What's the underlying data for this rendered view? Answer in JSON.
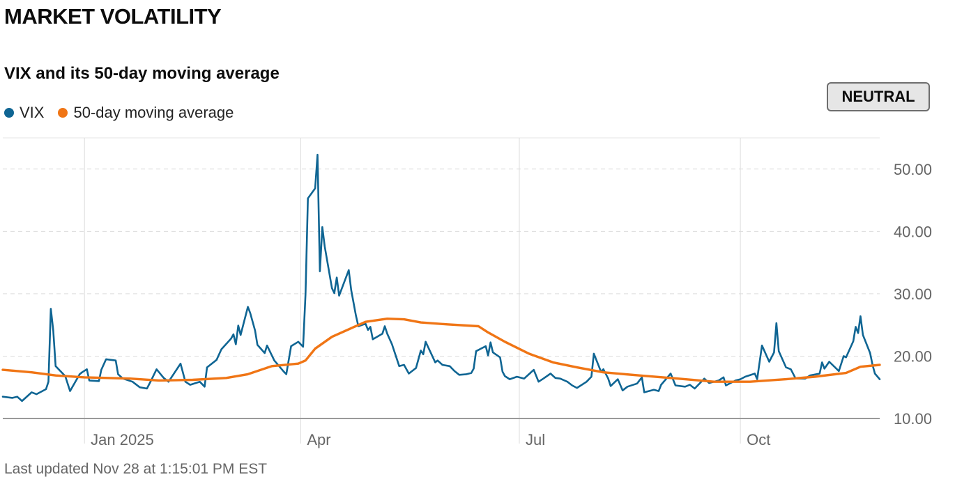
{
  "header": {
    "title": "MARKET VOLATILITY",
    "subtitle": "VIX and its 50-day moving average",
    "status_badge": "NEUTRAL"
  },
  "legend": [
    {
      "label": "VIX",
      "color": "#0f6593"
    },
    {
      "label": "50-day moving average",
      "color": "#f07515"
    }
  ],
  "footer": {
    "last_updated": "Last updated Nov 28 at 1:15:01 PM EST"
  },
  "colors": {
    "vix": "#0f6593",
    "ma": "#f07515",
    "grid": "#dcdcdc",
    "axis": "#9a9a9a",
    "tick": "#666666"
  },
  "chart_data": {
    "type": "line",
    "title": "VIX and its 50-day moving average",
    "xlabel": "",
    "ylabel": "",
    "x_domain": [
      "2024-11-28",
      "2025-11-28"
    ],
    "ylim": [
      10,
      55
    ],
    "y_ticks": [
      {
        "value": 10,
        "label": "10.00"
      },
      {
        "value": 20,
        "label": "20.00"
      },
      {
        "value": 30,
        "label": "30.00"
      },
      {
        "value": 40,
        "label": "40.00"
      },
      {
        "value": 50,
        "label": "50.00"
      }
    ],
    "x_ticks": [
      {
        "date": "2025-01-01",
        "label": "Jan 2025"
      },
      {
        "date": "2025-04-01",
        "label": "Apr"
      },
      {
        "date": "2025-07-01",
        "label": "Jul"
      },
      {
        "date": "2025-10-01",
        "label": "Oct"
      }
    ],
    "series": [
      {
        "name": "VIX",
        "color": "#0f6593",
        "points": [
          [
            "2024-11-28",
            13.5
          ],
          [
            "2024-12-02",
            13.3
          ],
          [
            "2024-12-04",
            13.5
          ],
          [
            "2024-12-06",
            12.8
          ],
          [
            "2024-12-10",
            14.2
          ],
          [
            "2024-12-12",
            13.9
          ],
          [
            "2024-12-16",
            14.7
          ],
          [
            "2024-12-17",
            15.9
          ],
          [
            "2024-12-18",
            27.6
          ],
          [
            "2024-12-19",
            24.1
          ],
          [
            "2024-12-20",
            18.4
          ],
          [
            "2024-12-24",
            16.8
          ],
          [
            "2024-12-26",
            14.4
          ],
          [
            "2024-12-30",
            17.1
          ],
          [
            "2024-12-31",
            17.4
          ],
          [
            "2025-01-02",
            17.9
          ],
          [
            "2025-01-03",
            16.1
          ],
          [
            "2025-01-07",
            16.0
          ],
          [
            "2025-01-08",
            17.8
          ],
          [
            "2025-01-10",
            19.5
          ],
          [
            "2025-01-14",
            19.3
          ],
          [
            "2025-01-15",
            17.1
          ],
          [
            "2025-01-17",
            16.4
          ],
          [
            "2025-01-21",
            15.9
          ],
          [
            "2025-01-24",
            15.0
          ],
          [
            "2025-01-27",
            14.8
          ],
          [
            "2025-01-29",
            16.3
          ],
          [
            "2025-01-31",
            17.9
          ],
          [
            "2025-02-03",
            16.5
          ],
          [
            "2025-02-05",
            15.9
          ],
          [
            "2025-02-10",
            18.8
          ],
          [
            "2025-02-12",
            15.9
          ],
          [
            "2025-02-14",
            15.4
          ],
          [
            "2025-02-18",
            15.9
          ],
          [
            "2025-02-20",
            15.1
          ],
          [
            "2025-02-21",
            18.2
          ],
          [
            "2025-02-25",
            19.4
          ],
          [
            "2025-02-27",
            21.1
          ],
          [
            "2025-03-03",
            22.8
          ],
          [
            "2025-03-04",
            23.5
          ],
          [
            "2025-03-05",
            21.9
          ],
          [
            "2025-03-06",
            24.9
          ],
          [
            "2025-03-07",
            23.4
          ],
          [
            "2025-03-10",
            27.9
          ],
          [
            "2025-03-11",
            26.9
          ],
          [
            "2025-03-13",
            24.1
          ],
          [
            "2025-03-14",
            21.8
          ],
          [
            "2025-03-17",
            20.5
          ],
          [
            "2025-03-18",
            21.7
          ],
          [
            "2025-03-21",
            19.3
          ],
          [
            "2025-03-25",
            17.5
          ],
          [
            "2025-03-26",
            17.1
          ],
          [
            "2025-03-28",
            21.6
          ],
          [
            "2025-03-31",
            22.3
          ],
          [
            "2025-04-02",
            21.5
          ],
          [
            "2025-04-03",
            30.0
          ],
          [
            "2025-04-04",
            45.3
          ],
          [
            "2025-04-07",
            46.9
          ],
          [
            "2025-04-08",
            52.3
          ],
          [
            "2025-04-09",
            33.6
          ],
          [
            "2025-04-10",
            40.7
          ],
          [
            "2025-04-11",
            37.6
          ],
          [
            "2025-04-14",
            30.9
          ],
          [
            "2025-04-15",
            30.1
          ],
          [
            "2025-04-16",
            32.6
          ],
          [
            "2025-04-17",
            29.7
          ],
          [
            "2025-04-21",
            33.8
          ],
          [
            "2025-04-22",
            30.6
          ],
          [
            "2025-04-24",
            26.5
          ],
          [
            "2025-04-25",
            24.8
          ],
          [
            "2025-04-28",
            25.2
          ],
          [
            "2025-04-29",
            24.2
          ],
          [
            "2025-04-30",
            24.7
          ],
          [
            "2025-05-01",
            22.7
          ],
          [
            "2025-05-05",
            23.6
          ],
          [
            "2025-05-06",
            24.8
          ],
          [
            "2025-05-07",
            23.6
          ],
          [
            "2025-05-09",
            21.9
          ],
          [
            "2025-05-12",
            18.4
          ],
          [
            "2025-05-14",
            18.6
          ],
          [
            "2025-05-16",
            17.2
          ],
          [
            "2025-05-19",
            18.1
          ],
          [
            "2025-05-21",
            20.9
          ],
          [
            "2025-05-22",
            20.3
          ],
          [
            "2025-05-23",
            22.3
          ],
          [
            "2025-05-27",
            19.0
          ],
          [
            "2025-05-28",
            19.3
          ],
          [
            "2025-05-30",
            18.6
          ],
          [
            "2025-06-02",
            18.4
          ],
          [
            "2025-06-04",
            17.6
          ],
          [
            "2025-06-06",
            17.0
          ],
          [
            "2025-06-09",
            17.1
          ],
          [
            "2025-06-11",
            17.3
          ],
          [
            "2025-06-12",
            18.0
          ],
          [
            "2025-06-13",
            20.8
          ],
          [
            "2025-06-17",
            21.6
          ],
          [
            "2025-06-18",
            20.1
          ],
          [
            "2025-06-19",
            22.2
          ],
          [
            "2025-06-20",
            20.6
          ],
          [
            "2025-06-23",
            19.8
          ],
          [
            "2025-06-24",
            17.5
          ],
          [
            "2025-06-25",
            16.8
          ],
          [
            "2025-06-27",
            16.3
          ],
          [
            "2025-06-30",
            16.7
          ],
          [
            "2025-07-03",
            16.4
          ],
          [
            "2025-07-07",
            17.8
          ],
          [
            "2025-07-09",
            15.9
          ],
          [
            "2025-07-11",
            16.4
          ],
          [
            "2025-07-14",
            17.2
          ],
          [
            "2025-07-16",
            16.5
          ],
          [
            "2025-07-18",
            16.4
          ],
          [
            "2025-07-21",
            15.9
          ],
          [
            "2025-07-23",
            15.3
          ],
          [
            "2025-07-25",
            14.9
          ],
          [
            "2025-07-29",
            15.9
          ],
          [
            "2025-07-31",
            16.7
          ],
          [
            "2025-08-01",
            20.4
          ],
          [
            "2025-08-04",
            17.5
          ],
          [
            "2025-08-05",
            17.9
          ],
          [
            "2025-08-07",
            16.4
          ],
          [
            "2025-08-08",
            15.2
          ],
          [
            "2025-08-11",
            16.3
          ],
          [
            "2025-08-13",
            14.5
          ],
          [
            "2025-08-15",
            15.1
          ],
          [
            "2025-08-19",
            15.6
          ],
          [
            "2025-08-21",
            16.6
          ],
          [
            "2025-08-22",
            14.2
          ],
          [
            "2025-08-26",
            14.6
          ],
          [
            "2025-08-28",
            14.4
          ],
          [
            "2025-08-29",
            15.4
          ],
          [
            "2025-09-02",
            17.2
          ],
          [
            "2025-09-04",
            15.3
          ],
          [
            "2025-09-08",
            15.1
          ],
          [
            "2025-09-10",
            15.4
          ],
          [
            "2025-09-12",
            14.8
          ],
          [
            "2025-09-16",
            16.4
          ],
          [
            "2025-09-18",
            15.7
          ],
          [
            "2025-09-22",
            16.1
          ],
          [
            "2025-09-24",
            16.6
          ],
          [
            "2025-09-25",
            15.3
          ],
          [
            "2025-09-29",
            16.1
          ],
          [
            "2025-10-01",
            16.3
          ],
          [
            "2025-10-03",
            16.7
          ],
          [
            "2025-10-07",
            17.2
          ],
          [
            "2025-10-08",
            16.3
          ],
          [
            "2025-10-10",
            21.7
          ],
          [
            "2025-10-13",
            19.1
          ],
          [
            "2025-10-15",
            20.6
          ],
          [
            "2025-10-16",
            25.3
          ],
          [
            "2025-10-17",
            20.8
          ],
          [
            "2025-10-20",
            18.2
          ],
          [
            "2025-10-22",
            17.9
          ],
          [
            "2025-10-24",
            16.4
          ],
          [
            "2025-10-28",
            16.4
          ],
          [
            "2025-10-30",
            16.9
          ],
          [
            "2025-11-03",
            17.2
          ],
          [
            "2025-11-04",
            19.0
          ],
          [
            "2025-11-05",
            18.0
          ],
          [
            "2025-11-07",
            19.1
          ],
          [
            "2025-11-11",
            17.6
          ],
          [
            "2025-11-13",
            20.0
          ],
          [
            "2025-11-14",
            19.8
          ],
          [
            "2025-11-17",
            22.4
          ],
          [
            "2025-11-18",
            24.7
          ],
          [
            "2025-11-19",
            23.7
          ],
          [
            "2025-11-20",
            26.4
          ],
          [
            "2025-11-21",
            23.4
          ],
          [
            "2025-11-24",
            20.5
          ],
          [
            "2025-11-25",
            18.6
          ],
          [
            "2025-11-26",
            17.2
          ],
          [
            "2025-11-28",
            16.3
          ]
        ]
      },
      {
        "name": "50-day moving average",
        "color": "#f07515",
        "points": [
          [
            "2024-11-28",
            17.8
          ],
          [
            "2024-12-10",
            17.4
          ],
          [
            "2024-12-20",
            16.9
          ],
          [
            "2025-01-01",
            16.6
          ],
          [
            "2025-01-20",
            16.4
          ],
          [
            "2025-02-01",
            16.1
          ],
          [
            "2025-02-15",
            16.2
          ],
          [
            "2025-03-01",
            16.5
          ],
          [
            "2025-03-10",
            17.1
          ],
          [
            "2025-03-20",
            18.4
          ],
          [
            "2025-03-31",
            18.8
          ],
          [
            "2025-04-03",
            19.3
          ],
          [
            "2025-04-07",
            21.2
          ],
          [
            "2025-04-14",
            23.1
          ],
          [
            "2025-04-21",
            24.3
          ],
          [
            "2025-04-28",
            25.5
          ],
          [
            "2025-05-07",
            26.0
          ],
          [
            "2025-05-14",
            25.9
          ],
          [
            "2025-05-21",
            25.4
          ],
          [
            "2025-06-01",
            25.1
          ],
          [
            "2025-06-14",
            24.8
          ],
          [
            "2025-06-18",
            23.8
          ],
          [
            "2025-06-25",
            22.3
          ],
          [
            "2025-07-05",
            20.4
          ],
          [
            "2025-07-15",
            19.0
          ],
          [
            "2025-07-25",
            18.2
          ],
          [
            "2025-08-05",
            17.4
          ],
          [
            "2025-08-20",
            16.9
          ],
          [
            "2025-09-05",
            16.4
          ],
          [
            "2025-09-20",
            15.9
          ],
          [
            "2025-10-05",
            15.9
          ],
          [
            "2025-10-20",
            16.3
          ],
          [
            "2025-11-01",
            16.7
          ],
          [
            "2025-11-14",
            17.3
          ],
          [
            "2025-11-20",
            18.3
          ],
          [
            "2025-11-28",
            18.6
          ]
        ]
      }
    ]
  }
}
